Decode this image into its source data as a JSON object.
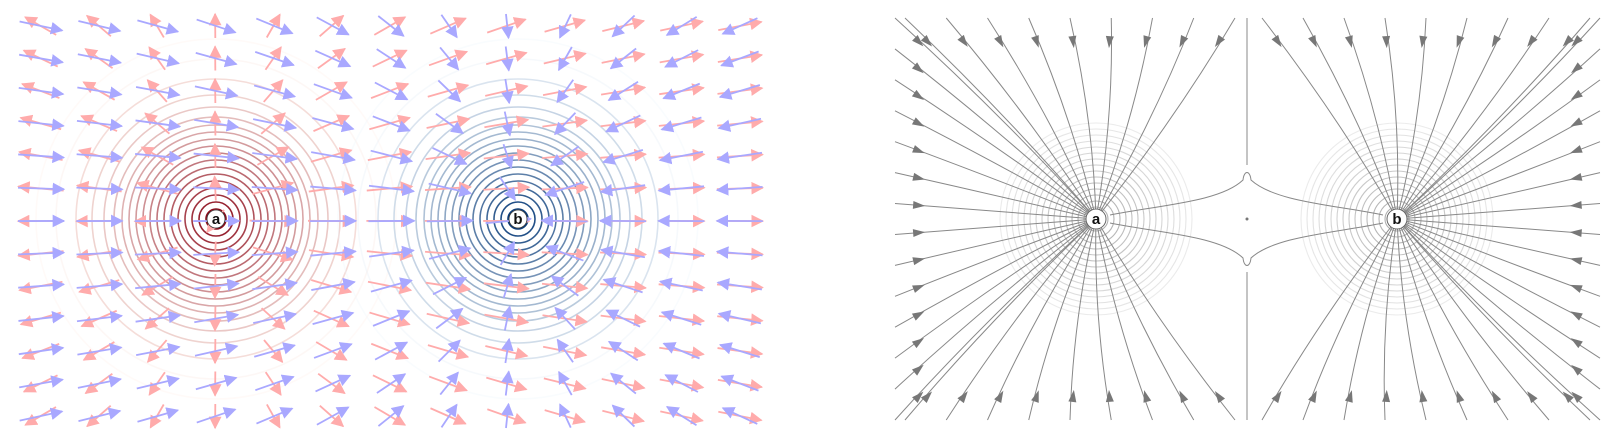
{
  "left_panel": {
    "point_a": {
      "label": "a",
      "ring_color": "#8b0a1a",
      "field_color": "#ffabab"
    },
    "point_b": {
      "label": "b",
      "ring_color": "#0b3d7a",
      "field_color": "#a9a8ff"
    }
  },
  "right_panel": {
    "point_a": {
      "label": "a"
    },
    "point_b": {
      "label": "b"
    },
    "line_color": "#888888"
  }
}
